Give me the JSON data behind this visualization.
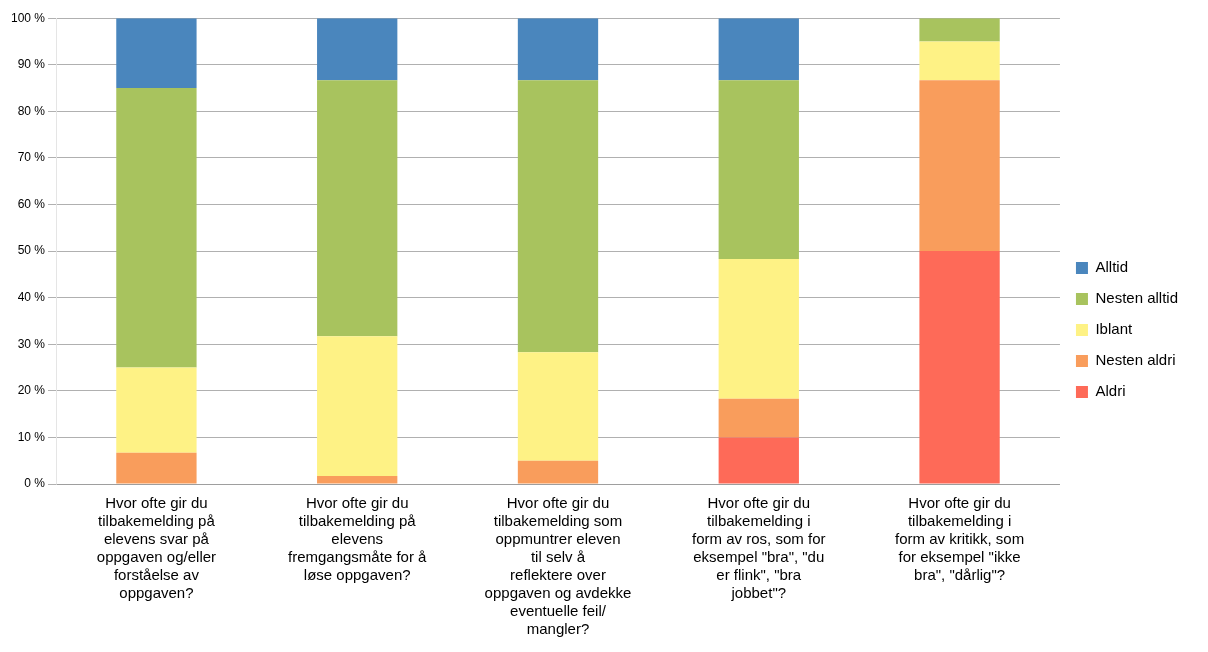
{
  "chart_data": {
    "type": "bar",
    "stacked": true,
    "legend": "right",
    "grid": "y",
    "categories": [
      "Hvor ofte gir du tilbakemelding på elevens svar på oppgaven og/eller forståelse av oppgaven?",
      "Hvor ofte gir du tilbakemelding på elevens fremgangsmåte for å løse oppgaven?",
      "Hvor ofte gir du tilbakemelding som oppmuntrer eleven til selv å reflektere over oppgaven og avdekke eventuelle feil/ mangler?",
      "Hvor ofte gir du tilbakemelding i form av ros, som for eksempel \"bra\", \"du er flink\", \"bra jobbet\"?",
      "Hvor ofte gir du tilbakemelding i form av kritikk, som for eksempel \"ikke bra\", \"dårlig\"?"
    ],
    "series": [
      {
        "name": "Aldri",
        "color": "#fe6a58",
        "values": [
          0,
          0,
          0,
          10,
          50
        ]
      },
      {
        "name": "Nesten aldri",
        "color": "#f99d5c",
        "values": [
          6.7,
          1.7,
          5,
          8.3,
          36.7
        ]
      },
      {
        "name": "Iblant",
        "color": "#fef285",
        "values": [
          18.3,
          30,
          23.3,
          30,
          8.3
        ]
      },
      {
        "name": "Nesten alltid",
        "color": "#a8c35e",
        "values": [
          60,
          55,
          58.4,
          38.4,
          5
        ]
      },
      {
        "name": "Alltid",
        "color": "#4a86bd",
        "values": [
          15,
          13.3,
          13.3,
          13.3,
          0
        ]
      }
    ],
    "ylim": [
      0,
      100
    ],
    "yticks": [
      {
        "value": 0,
        "label": "0 %"
      },
      {
        "value": 10,
        "label": "10 %"
      },
      {
        "value": 20,
        "label": "20 %"
      },
      {
        "value": 30,
        "label": "30 %"
      },
      {
        "value": 40,
        "label": "40 %"
      },
      {
        "value": 50,
        "label": "50 %"
      },
      {
        "value": 60,
        "label": "60 %"
      },
      {
        "value": 70,
        "label": "70 %"
      },
      {
        "value": 80,
        "label": "80 %"
      },
      {
        "value": 90,
        "label": "90 %"
      },
      {
        "value": 100,
        "label": "100 %"
      }
    ]
  }
}
